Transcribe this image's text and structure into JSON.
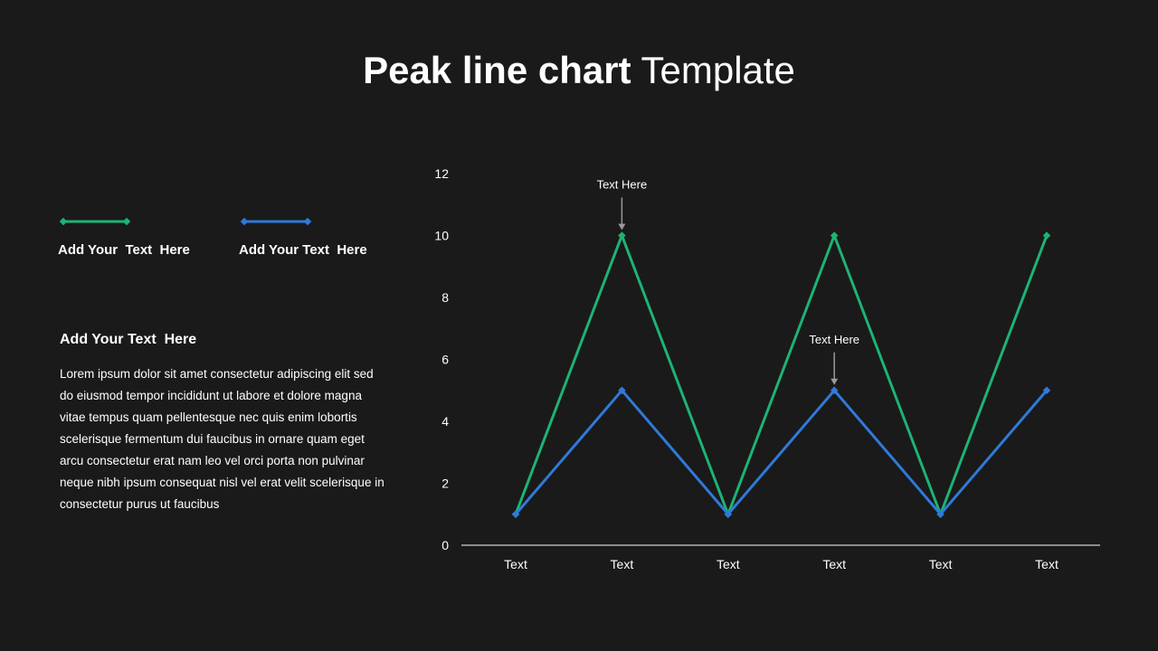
{
  "title": {
    "bold": "Peak line chart",
    "light": "Template"
  },
  "legend": [
    {
      "label": "Add Your  Text  Here",
      "color": "#1db374"
    },
    {
      "label": "Add Your Text  Here",
      "color": "#2f7ad9"
    }
  ],
  "body": {
    "heading": "Add Your Text  Here",
    "text": "Lorem ipsum dolor sit amet consectetur adipiscing elit sed do eiusmod tempor incididunt ut labore et dolore magna vitae tempus quam pellentesque nec quis enim lobortis scelerisque fermentum dui faucibus in ornare quam eget arcu consectetur erat nam leo vel orci porta non pulvinar neque nibh ipsum consequat nisl vel erat velit scelerisque in consectetur purus ut faucibus"
  },
  "chart_data": {
    "type": "line",
    "categories": [
      "Text",
      "Text",
      "Text",
      "Text",
      "Text",
      "Text"
    ],
    "series": [
      {
        "values": [
          1,
          10,
          1,
          10,
          1,
          10
        ],
        "color": "#1db374"
      },
      {
        "values": [
          1,
          5,
          1,
          5,
          1,
          5
        ],
        "color": "#2f7ad9"
      }
    ],
    "yticks": [
      0,
      2,
      4,
      6,
      8,
      10,
      12
    ],
    "ylim": [
      0,
      12
    ],
    "grid": false,
    "annotations": [
      {
        "text": "Text Here",
        "category_index": 1,
        "value": 10
      },
      {
        "text": "Text Here",
        "category_index": 3,
        "value": 5
      }
    ]
  }
}
